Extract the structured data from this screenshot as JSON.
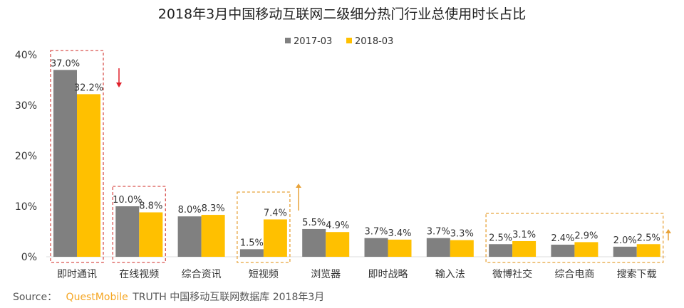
{
  "chart_data": {
    "type": "bar",
    "title": "2018年3月中国移动互联网二级细分热门行业总使用时长占比",
    "categories": [
      "即时通讯",
      "在线视频",
      "综合资讯",
      "短视频",
      "浏览器",
      "即时战略",
      "输入法",
      "微博社交",
      "综合电商",
      "搜索下载"
    ],
    "series": [
      {
        "name": "2017-03",
        "color": "#808080",
        "values": [
          37.0,
          10.0,
          8.0,
          1.5,
          5.5,
          3.7,
          3.7,
          2.5,
          2.4,
          2.0
        ],
        "labels": [
          "37.0%",
          "10.0%",
          "8.0%",
          "1.5%",
          "5.5%",
          "3.7%",
          "3.7%",
          "2.5%",
          "2.4%",
          "2.0%"
        ]
      },
      {
        "name": "2018-03",
        "color": "#FFC000",
        "values": [
          32.2,
          8.8,
          8.3,
          7.4,
          4.9,
          3.4,
          3.3,
          3.1,
          2.9,
          2.5
        ],
        "labels": [
          "32.2%",
          "8.8%",
          "8.3%",
          "7.4%",
          "4.9%",
          "3.4%",
          "3.3%",
          "3.1%",
          "2.9%",
          "2.5%"
        ]
      }
    ],
    "ylim": [
      0,
      40
    ],
    "yticks": [
      "0%",
      "10%",
      "20%",
      "30%",
      "40%"
    ],
    "legend_placement": "top-center",
    "grid": false,
    "annotations": {
      "red_boxes": [
        "即时通讯",
        "在线视频"
      ],
      "orange_boxes": [
        [
          "短视频"
        ],
        [
          "微博社交",
          "综合电商",
          "搜索下载"
        ]
      ],
      "down_arrow_color": "#E0202A",
      "up_arrow_color": "#E8A33A"
    }
  },
  "source": {
    "prefix": "Source：",
    "brand": "QuestMobile",
    "brand_color": "#F5A623",
    "text": "TRUTH 中国移动互联网数据库 2018年3月"
  }
}
